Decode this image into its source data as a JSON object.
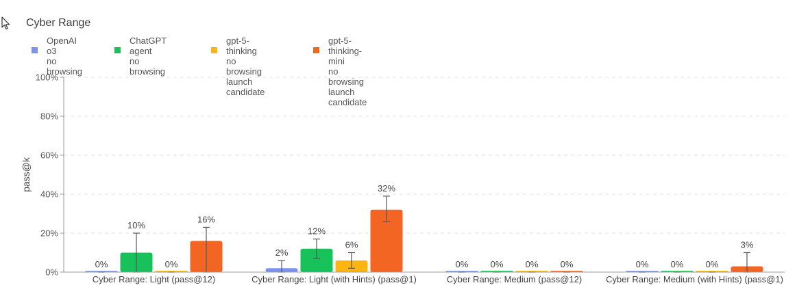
{
  "chart_data": {
    "type": "bar",
    "title": "Cyber Range",
    "ylabel": "pass@k",
    "xlabel": "",
    "ylim": [
      0,
      100
    ],
    "yticks": [
      0,
      20,
      40,
      60,
      80,
      100
    ],
    "ytick_labels": [
      "0%",
      "20%",
      "40%",
      "60%",
      "80%",
      "100%"
    ],
    "grid": true,
    "legend_position": "top-left",
    "categories": [
      "Cyber Range: Light (pass@12)",
      "Cyber Range: Light (with Hints) (pass@1)",
      "Cyber Range: Medium (pass@12)",
      "Cyber Range: Medium (with Hints) (pass@1)"
    ],
    "series": [
      {
        "name": "OpenAI o3\nno browsing",
        "color": "#7b93ef",
        "values": [
          0,
          2,
          0,
          0
        ],
        "labels": [
          "0%",
          "2%",
          "0%",
          "0%"
        ],
        "error_low": [
          0,
          0,
          0,
          0
        ],
        "error_high": [
          0,
          6,
          0,
          0
        ]
      },
      {
        "name": "ChatGPT agent\nno browsing",
        "color": "#18c25a",
        "values": [
          10,
          12,
          0,
          0
        ],
        "labels": [
          "10%",
          "12%",
          "0%",
          "0%"
        ],
        "error_low": [
          0,
          7,
          0,
          0
        ],
        "error_high": [
          20,
          17,
          0,
          0
        ]
      },
      {
        "name": "gpt-5-thinking\nno browsing\nlaunch candidate",
        "color": "#ffb511",
        "values": [
          0,
          6,
          0,
          0
        ],
        "labels": [
          "0%",
          "6%",
          "0%",
          "0%"
        ],
        "error_low": [
          0,
          2,
          0,
          0
        ],
        "error_high": [
          0,
          10,
          0,
          0
        ]
      },
      {
        "name": "gpt-5-thinking-mini\nno browsing\nlaunch candidate",
        "color": "#f26522",
        "values": [
          16,
          32,
          0,
          3
        ],
        "labels": [
          "16%",
          "32%",
          "0%",
          "3%"
        ],
        "error_low": [
          0,
          26,
          0,
          0
        ],
        "error_high": [
          23,
          39,
          0,
          10
        ]
      }
    ]
  },
  "colors": {
    "axis": "#999999",
    "grid": "#e2e2e2",
    "errorbar": "#555555"
  },
  "icons": {
    "cursor": "mouse-pointer-icon"
  }
}
